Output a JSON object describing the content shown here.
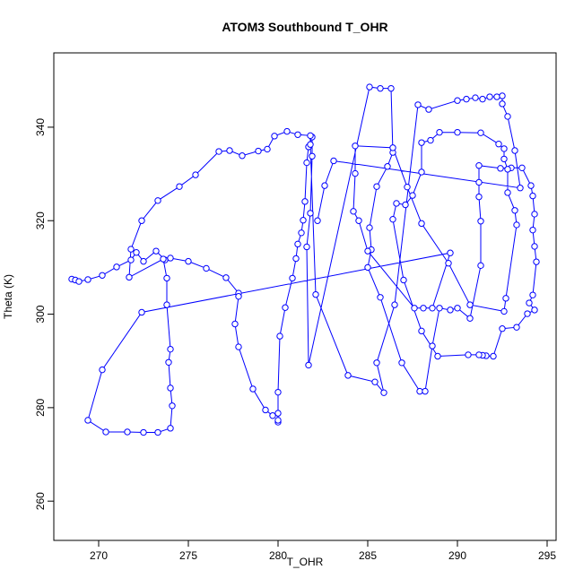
{
  "chart_data": {
    "type": "line",
    "title": "ATOM3 Southbound T_OHR",
    "xlabel": "T_OHR",
    "ylabel": "Theta (K)",
    "color": "#0000ff",
    "x": [
      268.5,
      268.7,
      268.9,
      269.4,
      270.2,
      271.0,
      271.8,
      272.1,
      272.5,
      273.2,
      273.7,
      274.0,
      275.0,
      276.0,
      277.1,
      277.8,
      277.8,
      277.6,
      277.8,
      278.6,
      279.3,
      279.7,
      280.0,
      280.0,
      280.0,
      280.0,
      280.1,
      280.4,
      280.8,
      281.0,
      281.1,
      281.3,
      281.4,
      281.5,
      281.6,
      281.7,
      281.9,
      281.9,
      281.8,
      281.6,
      281.7,
      285.1,
      285.7,
      286.3,
      286.4,
      286.1,
      285.5,
      285.1,
      285.2,
      285.0,
      285.7,
      286.9,
      287.9,
      288.2,
      288.6,
      289.0,
      289.6,
      290.0,
      290.7,
      291.3,
      291.3,
      291.2,
      291.2,
      291.2,
      292.4,
      293.0,
      293.6,
      294.1,
      294.2,
      294.3,
      294.2,
      294.3,
      294.4,
      294.2,
      294.0,
      294.3,
      293.9,
      293.3,
      292.5,
      292.0,
      291.6,
      291.4,
      291.2,
      290.6,
      288.9,
      288.0,
      287.0,
      286.4,
      286.6,
      287.1,
      287.5,
      288.0,
      288.0,
      288.5,
      289.0,
      290.0,
      291.3,
      292.3,
      292.6,
      292.6,
      292.8,
      292.8,
      293.2,
      293.3,
      292.7,
      292.6,
      290.7,
      289.5,
      288.0,
      287.2,
      286.4,
      284.3,
      284.3,
      284.2,
      284.5,
      285.0,
      287.6,
      288.1,
      288.6,
      289.6,
      272.4,
      270.2,
      269.4,
      270.4,
      271.6,
      272.5,
      273.3,
      274.0,
      274.1,
      274.0,
      273.9,
      274.0,
      273.8,
      273.8,
      273.6,
      271.7,
      271.8,
      272.4,
      273.3,
      274.5,
      275.4,
      276.7,
      277.3,
      278.0,
      278.9,
      279.4,
      279.8,
      280.5,
      281.1,
      281.8,
      281.8,
      282.1,
      283.9,
      285.4,
      285.9,
      285.5,
      286.5,
      287.8,
      288.4,
      290.0,
      290.5,
      291.0,
      291.4,
      291.8,
      292.2,
      292.5,
      292.5,
      292.8,
      293.2,
      293.5,
      283.1,
      282.6,
      282.2
    ],
    "y": [
      307.5,
      307.3,
      307.0,
      307.4,
      308.3,
      310.1,
      311.6,
      313.2,
      311.3,
      313.5,
      311.6,
      312.0,
      311.3,
      309.8,
      307.8,
      304.5,
      303.8,
      297.9,
      293.0,
      284.0,
      279.5,
      278.3,
      278.8,
      276.9,
      277.3,
      283.3,
      295.3,
      301.4,
      307.7,
      311.9,
      315.0,
      317.4,
      320.1,
      324.1,
      332.4,
      335.8,
      337.9,
      333.8,
      321.6,
      314.4,
      289.1,
      348.6,
      348.3,
      348.3,
      334.6,
      331.6,
      327.3,
      318.5,
      313.8,
      310.0,
      303.6,
      289.6,
      283.5,
      283.5,
      293.2,
      301.3,
      300.9,
      301.3,
      299.1,
      310.4,
      319.9,
      325.1,
      328.2,
      331.8,
      331.2,
      331.3,
      331.3,
      327.5,
      325.3,
      321.4,
      318.0,
      314.5,
      311.2,
      304.1,
      302.4,
      300.9,
      300.1,
      297.2,
      296.9,
      291.0,
      291.1,
      291.2,
      291.3,
      291.3,
      291.0,
      296.4,
      307.3,
      320.3,
      323.7,
      323.4,
      325.4,
      330.4,
      336.7,
      337.2,
      338.9,
      338.9,
      338.8,
      336.4,
      335.4,
      333.2,
      331.0,
      326.0,
      322.2,
      319.1,
      303.4,
      300.6,
      302.0,
      310.9,
      319.4,
      327.2,
      335.6,
      336.0,
      330.1,
      322.0,
      320.0,
      313.5,
      301.3,
      301.3,
      301.3,
      313.1,
      300.4,
      288.1,
      277.3,
      274.8,
      274.8,
      274.7,
      274.7,
      275.6,
      280.4,
      284.2,
      289.7,
      292.5,
      302.0,
      307.7,
      311.8,
      307.9,
      313.9,
      320.0,
      324.3,
      327.3,
      329.8,
      334.8,
      335.0,
      333.9,
      334.9,
      335.3,
      338.1,
      339.1,
      338.4,
      338.2,
      336.3,
      304.2,
      286.9,
      285.5,
      283.2,
      289.6,
      302.0,
      344.8,
      343.8,
      345.7,
      346.0,
      346.3,
      346.0,
      346.5,
      346.5,
      346.7,
      345.0,
      342.3,
      335.0,
      327.0,
      332.8,
      327.5,
      320.0
    ],
    "xlim": [
      267.5,
      295.5
    ],
    "ylim": [
      251.6,
      355.9
    ],
    "xticks": [
      270,
      275,
      280,
      285,
      290,
      295
    ],
    "yticks": [
      260,
      280,
      300,
      320,
      340
    ]
  }
}
